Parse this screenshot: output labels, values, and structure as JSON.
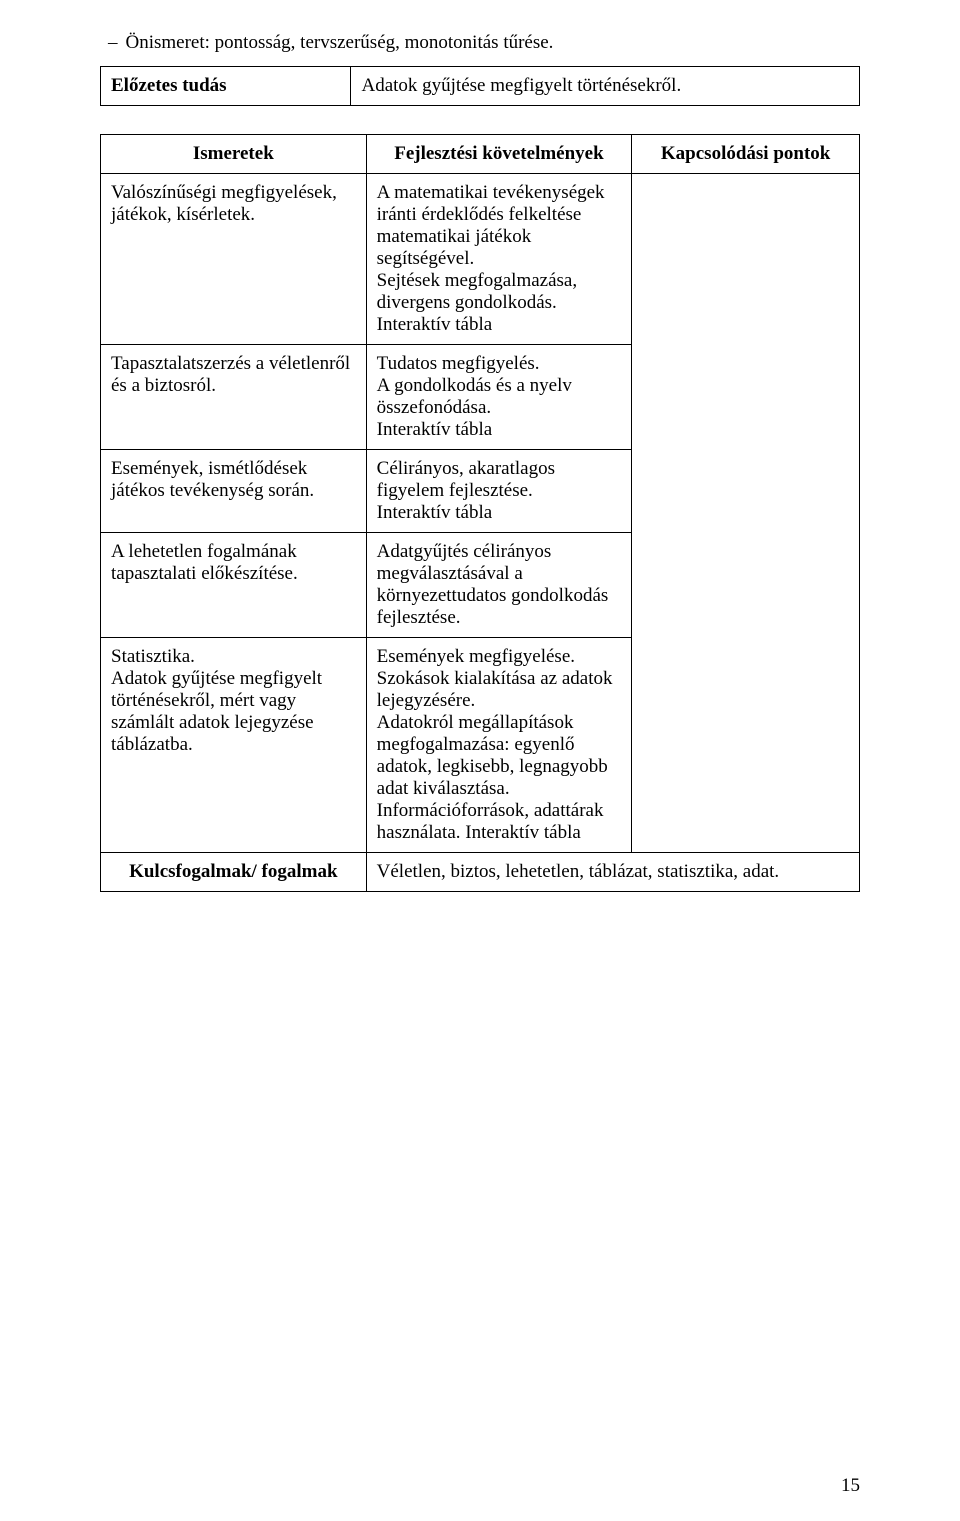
{
  "lead_bullet": "Önismeret: pontosság, tervszerűség, monotonitás tűrése.",
  "table1": {
    "label": "Előzetes tudás",
    "value": "Adatok gyűjtése megfigyelt történésekről."
  },
  "table2": {
    "headers": {
      "c1": "Ismeretek",
      "c2": "Fejlesztési követelmények",
      "c3": "Kapcsolódási pontok"
    },
    "rows": [
      {
        "c1": "Valószínűségi megfigyelések, játékok, kísérletek.",
        "c2": "A matematikai tevékenységek iránti érdeklődés felkeltése matematikai játékok segítségével.\nSejtések megfogalmazása, divergens gondolkodás.\nInteraktív tábla"
      },
      {
        "c1": "Tapasztalatszerzés a véletlenről és a biztosról.",
        "c2": "Tudatos megfigyelés.\nA gondolkodás és a nyelv összefonódása.\nInteraktív tábla"
      },
      {
        "c1": "Események, ismétlődések játékos tevékenység során.",
        "c2": "Célirányos, akaratlagos figyelem fejlesztése.\nInteraktív tábla"
      },
      {
        "c1": "A lehetetlen fogalmának tapasztalati előkészítése.",
        "c2": "Adatgyűjtés célirányos megválasztásával a környezettudatos gondolkodás fejlesztése."
      },
      {
        "c1": "Statisztika.\nAdatok gyűjtése megfigyelt történésekről, mért vagy számlált adatok lejegyzése táblázatba.",
        "c2": "Események megfigyelése.\nSzokások kialakítása az adatok lejegyzésére.\nAdatokról megállapítások megfogalmazása: egyenlő adatok, legkisebb, legnagyobb adat kiválasztása.\nInformációforrások, adattárak használata. Interaktív tábla"
      }
    ],
    "footer": {
      "label": "Kulcsfogalmak/ fogalmak",
      "value": "Véletlen, biztos, lehetetlen, táblázat, statisztika, adat."
    }
  },
  "pagenum": "15"
}
